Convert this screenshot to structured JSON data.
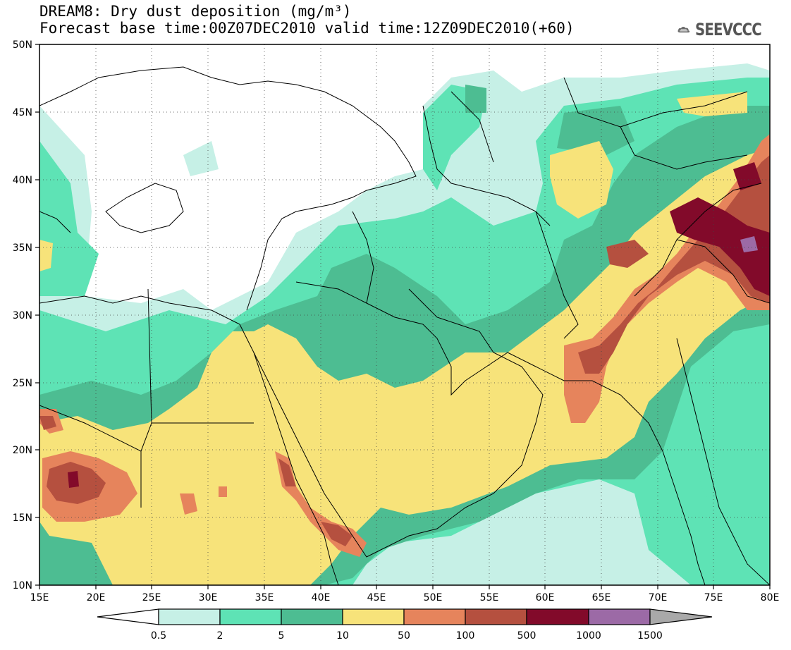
{
  "header": {
    "title": "DREAM8: Dry dust deposition (mg/m³)",
    "subtitle": "Forecast base time:00Z07DEC2010 valid time:12Z09DEC2010(+60)"
  },
  "logo": {
    "text": "SEEVCCC",
    "icon": "cloud-icon"
  },
  "axes": {
    "lon_labels": [
      "15E",
      "20E",
      "25E",
      "30E",
      "35E",
      "40E",
      "45E",
      "50E",
      "55E",
      "60E",
      "65E",
      "70E",
      "75E",
      "80E"
    ],
    "lat_labels": [
      "10N",
      "15N",
      "20N",
      "25N",
      "30N",
      "35N",
      "40N",
      "45N",
      "50N"
    ],
    "lon_range": [
      15,
      80
    ],
    "lat_range": [
      10,
      50
    ],
    "grid": "dotted"
  },
  "colorbar": {
    "labels": [
      "0.5",
      "2",
      "5",
      "10",
      "50",
      "100",
      "500",
      "1000",
      "1500"
    ],
    "colors": [
      "#ffffff",
      "#c6f0e6",
      "#5ee3b5",
      "#4dbd92",
      "#f7e37a",
      "#e6845c",
      "#b5503f",
      "#820a2a",
      "#9c6aa6",
      "#a9a9a9"
    ]
  },
  "colors": {
    "level_05": "#c6f0e6",
    "level_2": "#5ee3b5",
    "level_5": "#4dbd92",
    "level_10": "#f7e37a",
    "level_50": "#e6845c",
    "level_100": "#b5503f",
    "level_500": "#820a2a",
    "level_1000": "#9c6aa6"
  }
}
